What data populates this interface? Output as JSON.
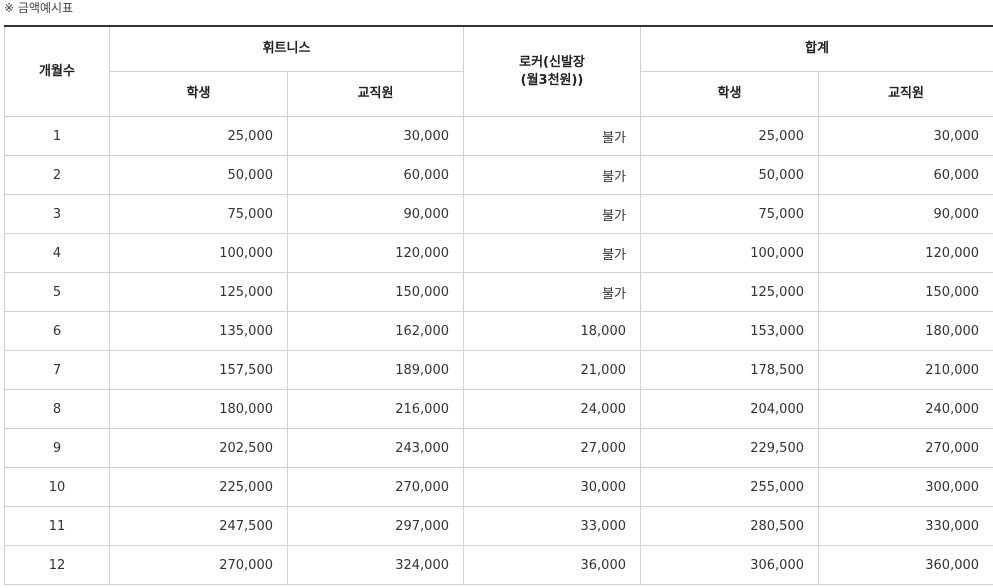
{
  "note": "※ 금액예시표",
  "table": {
    "header": {
      "months": "개월수",
      "fitness": "휘트니스",
      "locker": "로커(신발장\n(월3천원))",
      "total": "합계",
      "fitness_sub": [
        "학생",
        "교직원"
      ],
      "total_sub": [
        "학생",
        "교직원"
      ]
    },
    "rows": [
      [
        "1",
        "25,000",
        "30,000",
        "불가",
        "25,000",
        "30,000"
      ],
      [
        "2",
        "50,000",
        "60,000",
        "불가",
        "50,000",
        "60,000"
      ],
      [
        "3",
        "75,000",
        "90,000",
        "불가",
        "75,000",
        "90,000"
      ],
      [
        "4",
        "100,000",
        "120,000",
        "불가",
        "100,000",
        "120,000"
      ],
      [
        "5",
        "125,000",
        "150,000",
        "불가",
        "125,000",
        "150,000"
      ],
      [
        "6",
        "135,000",
        "162,000",
        "18,000",
        "153,000",
        "180,000"
      ],
      [
        "7",
        "157,500",
        "189,000",
        "21,000",
        "178,500",
        "210,000"
      ],
      [
        "8",
        "180,000",
        "216,000",
        "24,000",
        "204,000",
        "240,000"
      ],
      [
        "9",
        "202,500",
        "243,000",
        "27,000",
        "229,500",
        "270,000"
      ],
      [
        "10",
        "225,000",
        "270,000",
        "30,000",
        "255,000",
        "300,000"
      ],
      [
        "11",
        "247,500",
        "297,000",
        "33,000",
        "280,500",
        "330,000"
      ],
      [
        "12",
        "270,000",
        "324,000",
        "36,000",
        "306,000",
        "360,000"
      ]
    ]
  }
}
